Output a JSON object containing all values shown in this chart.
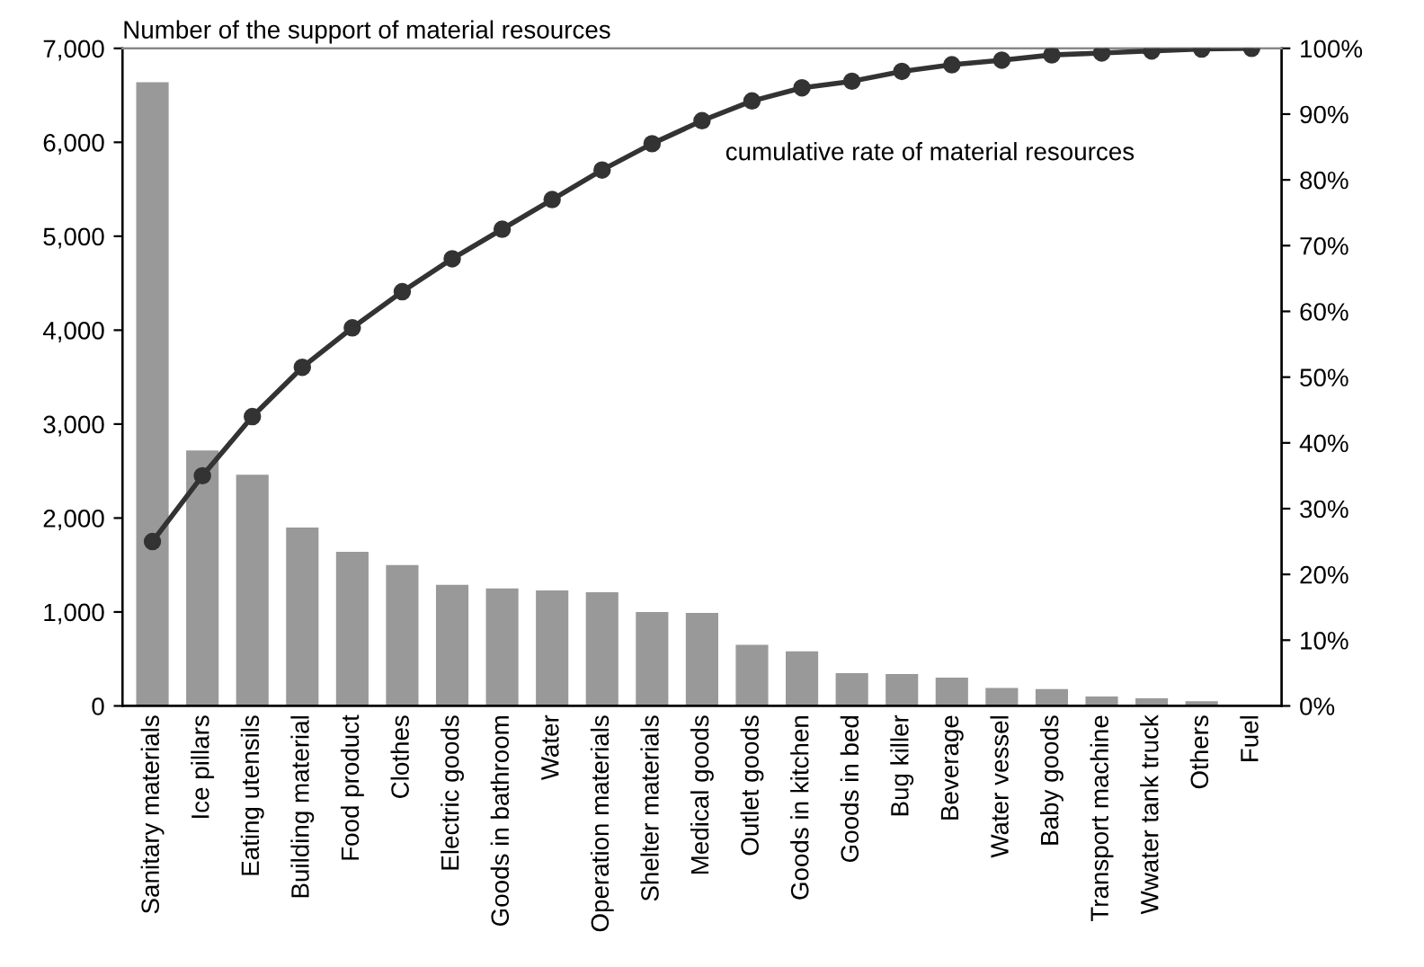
{
  "chart_data": {
    "type": "bar",
    "title": "Number of the support of material resources",
    "categories": [
      "Sanitary materials",
      "Ice pillars",
      "Eating utensils",
      "Building material",
      "Food product",
      "Clothes",
      "Electric goods",
      "Goods in bathroom",
      "Water",
      "Operation materials",
      "Shelter materials",
      "Medical goods",
      "Outlet goods",
      "Goods in kitchen",
      "Goods in bed",
      "Bug killer",
      "Beverage",
      "Water vessel",
      "Baby goods",
      "Transport machine",
      "Wwater tank truck",
      "Others",
      "Fuel"
    ],
    "series": [
      {
        "color": "#999999",
        "values": [
          6640,
          2720,
          2460,
          1900,
          1640,
          1500,
          1290,
          1250,
          1230,
          1210,
          1000,
          990,
          650,
          580,
          350,
          340,
          300,
          190,
          180,
          100,
          80,
          50,
          null
        ]
      },
      {
        "type": "line",
        "axis": "y2",
        "name": "cumulative rate of material resources",
        "color": "#333333",
        "values": [
          25,
          35,
          44,
          51.5,
          57.5,
          63,
          68,
          72.5,
          77,
          81.5,
          85.5,
          89,
          92,
          94,
          95,
          96.5,
          97.5,
          98.2,
          99,
          99.3,
          99.6,
          99.9,
          100
        ]
      }
    ],
    "ylim": [
      0,
      7000
    ],
    "yticks": [
      0,
      {
        "value": 1000,
        "label": "1,000"
      },
      {
        "value": 2000,
        "label": "2,000"
      },
      {
        "value": 3000,
        "label": "3,000"
      },
      {
        "value": 4000,
        "label": "4,000"
      },
      {
        "value": 5000,
        "label": "5,000"
      },
      {
        "value": 6000,
        "label": "6,000"
      },
      {
        "value": 7000,
        "label": "7,000"
      }
    ],
    "y2lim": [
      0,
      100
    ],
    "y2ticks": [
      {
        "value": 0,
        "label": "0%"
      },
      {
        "value": 10,
        "label": "10%"
      },
      {
        "value": 20,
        "label": "20%"
      },
      {
        "value": 30,
        "label": "30%"
      },
      {
        "value": 40,
        "label": "40%"
      },
      {
        "value": 50,
        "label": "50%"
      },
      {
        "value": 60,
        "label": "60%"
      },
      {
        "value": 70,
        "label": "70%"
      },
      {
        "value": 80,
        "label": "80%"
      },
      {
        "value": 90,
        "label": "90%"
      },
      {
        "value": 100,
        "label": "100%"
      }
    ],
    "marker": "circle",
    "line_style": "solid",
    "grid": false,
    "legend": false
  }
}
